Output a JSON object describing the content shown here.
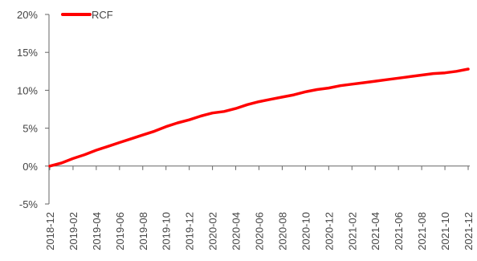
{
  "chart_data": {
    "type": "line",
    "title": "",
    "xlabel": "",
    "ylabel": "",
    "ylim": [
      -5,
      20
    ],
    "yticks": [
      "20%",
      "15%",
      "10%",
      "5%",
      "0%",
      "-5%"
    ],
    "yvalues": [
      20,
      15,
      10,
      5,
      0,
      -5
    ],
    "xticks": [
      "2018-12",
      "2019-02",
      "2019-04",
      "2019-06",
      "2019-08",
      "2019-10",
      "2019-12",
      "2020-02",
      "2020-04",
      "2020-06",
      "2020-08",
      "2020-10",
      "2020-12",
      "2021-02",
      "2021-04",
      "2021-06",
      "2021-08",
      "2021-10",
      "2021-12"
    ],
    "grid": false,
    "legend": "top-left",
    "series": [
      {
        "name": "RCF",
        "color": "#ff0000",
        "x": [
          "2018-12",
          "2019-01",
          "2019-02",
          "2019-03",
          "2019-04",
          "2019-05",
          "2019-06",
          "2019-07",
          "2019-08",
          "2019-09",
          "2019-10",
          "2019-11",
          "2019-12",
          "2020-01",
          "2020-02",
          "2020-03",
          "2020-04",
          "2020-05",
          "2020-06",
          "2020-07",
          "2020-08",
          "2020-09",
          "2020-10",
          "2020-11",
          "2020-12",
          "2021-01",
          "2021-02",
          "2021-03",
          "2021-04",
          "2021-05",
          "2021-06",
          "2021-07",
          "2021-08",
          "2021-09",
          "2021-10",
          "2021-11",
          "2021-12"
        ],
        "values": [
          0.0,
          0.4,
          1.0,
          1.5,
          2.1,
          2.6,
          3.1,
          3.6,
          4.1,
          4.6,
          5.2,
          5.7,
          6.1,
          6.6,
          7.0,
          7.2,
          7.6,
          8.1,
          8.5,
          8.8,
          9.1,
          9.4,
          9.8,
          10.1,
          10.3,
          10.6,
          10.8,
          11.0,
          11.2,
          11.4,
          11.6,
          11.8,
          12.0,
          12.2,
          12.3,
          12.5,
          12.8
        ]
      }
    ]
  }
}
